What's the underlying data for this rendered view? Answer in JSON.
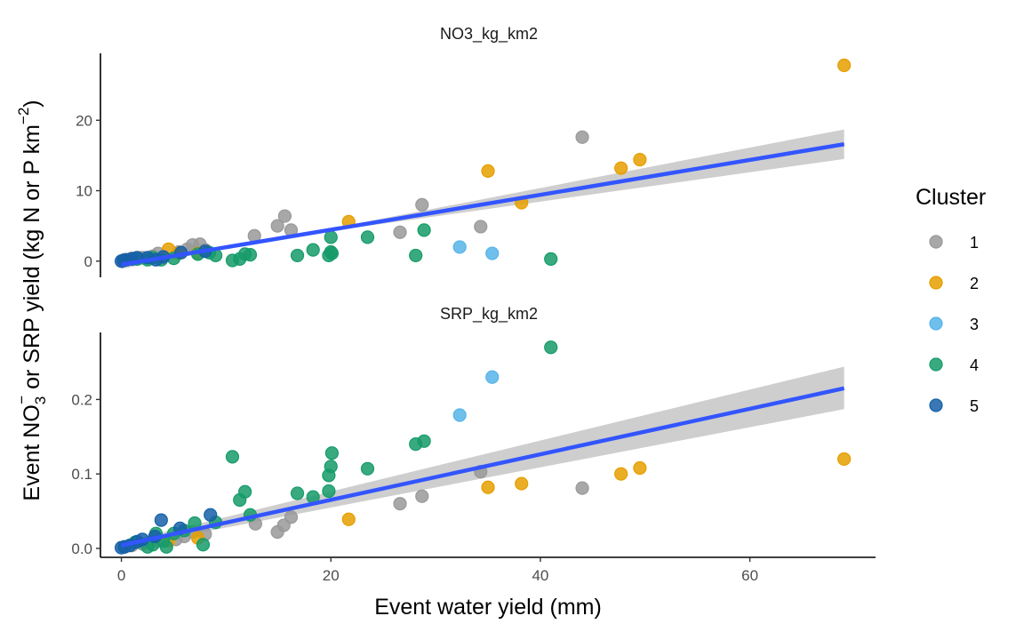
{
  "chart_data": {
    "type": "scatter",
    "xlabel": "Event water yield (mm)",
    "ylabel": "Event NO₃⁻ or SRP yield (kg N or P km⁻²)",
    "ylabel_parts": {
      "event": "Event NO",
      "no3_sub": "3",
      "no3_sup": "−",
      "or_srp_yield": " or SRP yield (kg N or P km",
      "km_sup": "−2",
      "close": ")"
    },
    "xlim": [
      -2,
      72
    ],
    "x_ticks": [
      0,
      20,
      40,
      60
    ],
    "x_tick_labels": [
      "0",
      "20",
      "40",
      "60"
    ],
    "legend": {
      "title": "Cluster",
      "entries": [
        {
          "label": "1",
          "color": "#999999"
        },
        {
          "label": "2",
          "color": "#E69F00"
        },
        {
          "label": "3",
          "color": "#56B4E9"
        },
        {
          "label": "4",
          "color": "#169B6A"
        },
        {
          "label": "5",
          "color": "#1660A8"
        }
      ]
    },
    "trend_line_color": "#3355FF",
    "ci_color": "#BEBEBE",
    "panels": [
      {
        "title": "NO3_kg_km2",
        "ylim": [
          -2.3,
          29.5
        ],
        "y_ticks": [
          0,
          10,
          20
        ],
        "y_tick_labels": [
          "0",
          "10",
          "20"
        ],
        "fit": {
          "x": [
            0,
            69
          ],
          "y": [
            -0.5,
            16.6
          ],
          "ci_lower_end": [
            0.1,
            14.5
          ],
          "ci_upper_end": [
            -1.1,
            18.7
          ]
        },
        "series": [
          {
            "name": "1",
            "points": [
              [
                0.3,
                0.2
              ],
              [
                1,
                0.4
              ],
              [
                2,
                0.5
              ],
              [
                3,
                0.7
              ],
              [
                3.5,
                1.1
              ],
              [
                5.5,
                1.3
              ],
              [
                6.3,
                1.7
              ],
              [
                6.8,
                2.3
              ],
              [
                7.5,
                2.4
              ],
              [
                8,
                1.6
              ],
              [
                12.7,
                3.6
              ],
              [
                14.9,
                5.0
              ],
              [
                15.6,
                6.4
              ],
              [
                16.2,
                4.4
              ],
              [
                26.6,
                4.1
              ],
              [
                28.7,
                8.0
              ],
              [
                34.3,
                4.9
              ],
              [
                44,
                17.6
              ]
            ]
          },
          {
            "name": "2",
            "points": [
              [
                4.5,
                1.7
              ],
              [
                5.4,
                1.1
              ],
              [
                7.3,
                1.1
              ],
              [
                21.7,
                5.6
              ],
              [
                35,
                12.8
              ],
              [
                38.2,
                8.3
              ],
              [
                47.7,
                13.2
              ],
              [
                49.5,
                14.4
              ],
              [
                69,
                27.8
              ]
            ]
          },
          {
            "name": "3",
            "points": [
              [
                32.3,
                2.0
              ],
              [
                35.4,
                1.1
              ]
            ]
          },
          {
            "name": "4",
            "points": [
              [
                1.5,
                0.3
              ],
              [
                2.5,
                0.2
              ],
              [
                3,
                0.5
              ],
              [
                3.8,
                0.2
              ],
              [
                5,
                0.4
              ],
              [
                7.3,
                1.0
              ],
              [
                8.4,
                1.2
              ],
              [
                9,
                0.8
              ],
              [
                10.6,
                0.1
              ],
              [
                11.3,
                0.3
              ],
              [
                11.8,
                1.0
              ],
              [
                12.3,
                0.9
              ],
              [
                16.8,
                0.8
              ],
              [
                18.3,
                1.6
              ],
              [
                19.8,
                0.8
              ],
              [
                20,
                1.3
              ],
              [
                20.1,
                1.1
              ],
              [
                20,
                3.4
              ],
              [
                23.5,
                3.4
              ],
              [
                28.1,
                0.8
              ],
              [
                28.9,
                4.4
              ],
              [
                41,
                0.3
              ]
            ]
          },
          {
            "name": "5",
            "points": [
              [
                0,
                0
              ],
              [
                0.2,
                0.1
              ],
              [
                0.5,
                0.2
              ],
              [
                1,
                0.3
              ],
              [
                1.5,
                0.5
              ],
              [
                2.5,
                0.5
              ],
              [
                3.3,
                0.2
              ],
              [
                4,
                0.6
              ],
              [
                5.7,
                1.2
              ],
              [
                8,
                1.4
              ]
            ]
          }
        ]
      },
      {
        "title": "SRP_kg_km2",
        "ylim": [
          -0.012,
          0.29
        ],
        "y_ticks": [
          0,
          0.1,
          0.2
        ],
        "y_tick_labels": [
          "0.0",
          "0.1",
          "0.2"
        ],
        "fit": {
          "x": [
            0,
            69
          ],
          "y": [
            0.004,
            0.215
          ],
          "ci_lower_end": [
            0.001,
            0.187
          ],
          "ci_upper_end": [
            0.008,
            0.244
          ]
        },
        "series": [
          {
            "name": "1",
            "points": [
              [
                0.3,
                0.002
              ],
              [
                1,
                0.004
              ],
              [
                2,
                0.006
              ],
              [
                3.5,
                0.01
              ],
              [
                5.2,
                0.012
              ],
              [
                6,
                0.016
              ],
              [
                6.8,
                0.022
              ],
              [
                8,
                0.019
              ],
              [
                12.8,
                0.033
              ],
              [
                14.9,
                0.022
              ],
              [
                15.5,
                0.031
              ],
              [
                16.2,
                0.042
              ],
              [
                26.6,
                0.06
              ],
              [
                28.7,
                0.07
              ],
              [
                34.3,
                0.103
              ],
              [
                44,
                0.081
              ]
            ]
          },
          {
            "name": "2",
            "points": [
              [
                4.5,
                0.01
              ],
              [
                7.3,
                0.014
              ],
              [
                21.7,
                0.039
              ],
              [
                35,
                0.082
              ],
              [
                38.2,
                0.087
              ],
              [
                47.7,
                0.1
              ],
              [
                49.5,
                0.108
              ],
              [
                69,
                0.12
              ]
            ]
          },
          {
            "name": "3",
            "points": [
              [
                32.3,
                0.179
              ],
              [
                35.4,
                0.23
              ]
            ]
          },
          {
            "name": "4",
            "points": [
              [
                1.3,
                0.008
              ],
              [
                2.5,
                0.002
              ],
              [
                3,
                0.005
              ],
              [
                3.3,
                0.02
              ],
              [
                4,
                0.01
              ],
              [
                4.3,
                0.002
              ],
              [
                5,
                0.02
              ],
              [
                6,
                0.024
              ],
              [
                7,
                0.034
              ],
              [
                7.8,
                0.005
              ],
              [
                9,
                0.035
              ],
              [
                10.6,
                0.123
              ],
              [
                11.3,
                0.065
              ],
              [
                11.8,
                0.076
              ],
              [
                12.3,
                0.045
              ],
              [
                16.8,
                0.074
              ],
              [
                18.3,
                0.069
              ],
              [
                19.8,
                0.077
              ],
              [
                19.8,
                0.098
              ],
              [
                20,
                0.11
              ],
              [
                20.1,
                0.128
              ],
              [
                23.5,
                0.107
              ],
              [
                28.1,
                0.14
              ],
              [
                28.9,
                0.144
              ],
              [
                41,
                0.27
              ]
            ]
          },
          {
            "name": "5",
            "points": [
              [
                0,
                0.001
              ],
              [
                0.3,
                0.002
              ],
              [
                0.8,
                0.004
              ],
              [
                1.5,
                0.009
              ],
              [
                2,
                0.012
              ],
              [
                3.2,
                0.016
              ],
              [
                3.8,
                0.038
              ],
              [
                5.6,
                0.027
              ],
              [
                8.5,
                0.045
              ]
            ]
          }
        ]
      }
    ]
  }
}
